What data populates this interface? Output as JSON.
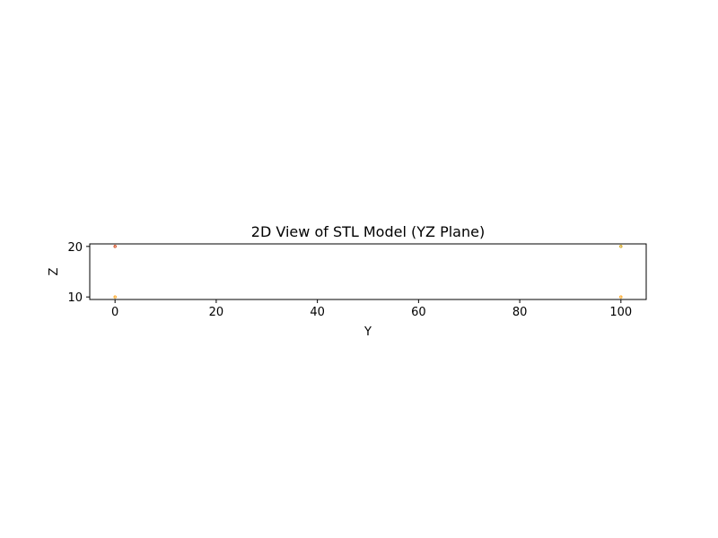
{
  "chart_data": {
    "type": "scatter",
    "title": "2D View of STL Model (YZ Plane)",
    "xlabel": "Y",
    "ylabel": "Z",
    "xlim": [
      -5,
      105
    ],
    "ylim": [
      9.5,
      20.5
    ],
    "xticks": [
      0,
      20,
      40,
      60,
      80,
      100
    ],
    "yticks": [
      10,
      20
    ],
    "grid": false,
    "points": [
      {
        "x": 0,
        "y": 10,
        "color": "#ff9900"
      },
      {
        "x": 0,
        "y": 20,
        "color": "#cc3300"
      },
      {
        "x": 100,
        "y": 10,
        "color": "#ff9900"
      },
      {
        "x": 100,
        "y": 20,
        "color": "#cc9900"
      }
    ]
  }
}
